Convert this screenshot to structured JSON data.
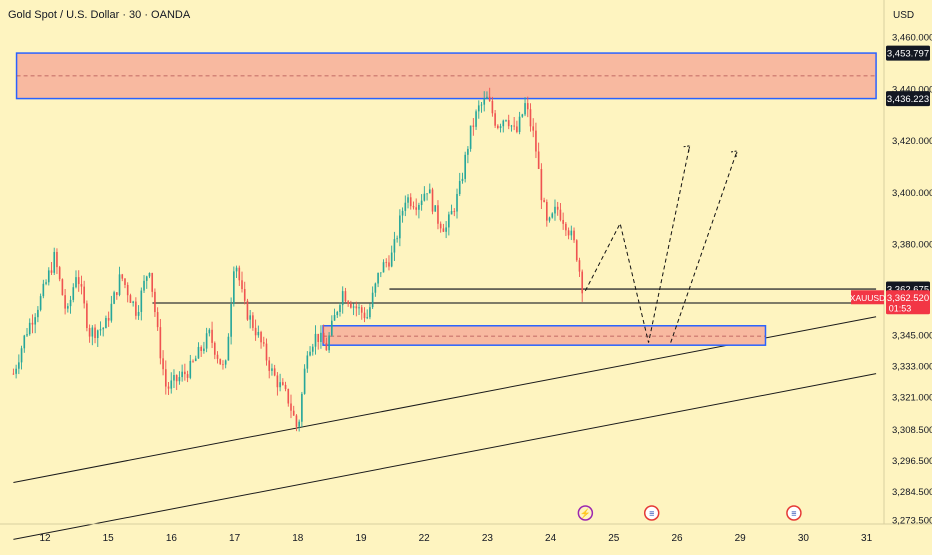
{
  "symbol_title": "Gold Spot / U.S. Dollar · 30 · OANDA",
  "currency": "USD",
  "ticker": "XAUUSD",
  "last_price": "3,362.520",
  "countdown": "01:53",
  "colors": {
    "background": "#fef4c0",
    "bull": "#26a69a",
    "bear": "#ef5350",
    "zone_fill": "#f8b9a0",
    "zone_border": "#2962ff",
    "line": "#1a1a1a",
    "price_tag": "#f23645"
  },
  "chart_data": {
    "type": "candlestick",
    "ylim": [
      3267,
      3465
    ],
    "y_ticks": [
      {
        "value": 3460,
        "label": "3,460.000"
      },
      {
        "value": 3440,
        "label": "3,440.000"
      },
      {
        "value": 3420,
        "label": "3,420.000"
      },
      {
        "value": 3400,
        "label": "3,400.000"
      },
      {
        "value": 3380,
        "label": "3,380.000"
      },
      {
        "value": 3345,
        "label": "3,345.000"
      },
      {
        "value": 3333,
        "label": "3,333.000"
      },
      {
        "value": 3321,
        "label": "3,321.000"
      },
      {
        "value": 3308.5,
        "label": "3,308.500"
      },
      {
        "value": 3296.5,
        "label": "3,296.500"
      },
      {
        "value": 3284.5,
        "label": "3,284.500"
      },
      {
        "value": 3273.5,
        "label": "3,273.500"
      }
    ],
    "x_ticks": [
      {
        "label": "12",
        "pos": 0
      },
      {
        "label": "15",
        "pos": 1
      },
      {
        "label": "16",
        "pos": 2
      },
      {
        "label": "17",
        "pos": 3
      },
      {
        "label": "18",
        "pos": 4
      },
      {
        "label": "19",
        "pos": 5
      },
      {
        "label": "22",
        "pos": 6
      },
      {
        "label": "23",
        "pos": 7
      },
      {
        "label": "24",
        "pos": 8
      },
      {
        "label": "25",
        "pos": 9
      },
      {
        "label": "26",
        "pos": 10
      },
      {
        "label": "29",
        "pos": 11
      },
      {
        "label": "30",
        "pos": 12
      },
      {
        "label": "31",
        "pos": 13
      }
    ],
    "xlim": [
      -0.5,
      13.15
    ],
    "price_labels": [
      {
        "value": 3453.797,
        "label": "3,453.797"
      },
      {
        "value": 3436.223,
        "label": "3,436.223"
      },
      {
        "value": 3362.675,
        "label": "3,362.675"
      },
      {
        "value": 3357.295,
        "label": "3,357.295"
      }
    ],
    "zones": [
      {
        "x0": -0.45,
        "x1": 13.15,
        "top": 3453.797,
        "bottom": 3436.223,
        "mid": 3445.0
      },
      {
        "x0": 4.4,
        "x1": 11.4,
        "top": 3348.5,
        "bottom": 3341.0,
        "mid": 3344.5
      }
    ],
    "h_lines": [
      {
        "value": 3362.675,
        "x0": 5.45,
        "x1": 13.15
      },
      {
        "value": 3357.295,
        "x0": 1.7,
        "x1": 13.15
      }
    ],
    "trend_lines": [
      {
        "x0": -0.5,
        "y0": 3288,
        "x1": 13.15,
        "y1": 3352
      },
      {
        "x0": -0.5,
        "y0": 3266,
        "x1": 13.15,
        "y1": 3330
      }
    ],
    "projection_path": [
      {
        "x": 8.55,
        "y": 3362
      },
      {
        "x": 9.1,
        "y": 3388
      },
      {
        "x": 9.55,
        "y": 3342
      },
      {
        "x": 10.2,
        "y": 3418
      }
    ],
    "projection_path_2": [
      {
        "x": 9.9,
        "y": 3342
      },
      {
        "x": 10.95,
        "y": 3416
      }
    ],
    "event_icons": [
      {
        "name": "lightning",
        "pos": 8.55,
        "symbol": "⚡"
      },
      {
        "name": "us-flag",
        "pos": 9.6,
        "symbol": "≡"
      },
      {
        "name": "us-flag",
        "pos": 11.85,
        "symbol": "≡"
      }
    ],
    "price_anchors": [
      {
        "x": -0.5,
        "y": 3330
      },
      {
        "x": -0.3,
        "y": 3346
      },
      {
        "x": -0.05,
        "y": 3360
      },
      {
        "x": 0.15,
        "y": 3375
      },
      {
        "x": 0.35,
        "y": 3352
      },
      {
        "x": 0.5,
        "y": 3370
      },
      {
        "x": 0.7,
        "y": 3346
      },
      {
        "x": 0.95,
        "y": 3348
      },
      {
        "x": 1.2,
        "y": 3368
      },
      {
        "x": 1.45,
        "y": 3354
      },
      {
        "x": 1.65,
        "y": 3372
      },
      {
        "x": 1.8,
        "y": 3342
      },
      {
        "x": 1.92,
        "y": 3324
      },
      {
        "x": 2.3,
        "y": 3332
      },
      {
        "x": 2.6,
        "y": 3345
      },
      {
        "x": 2.85,
        "y": 3330
      },
      {
        "x": 3.0,
        "y": 3376
      },
      {
        "x": 3.15,
        "y": 3356
      },
      {
        "x": 3.35,
        "y": 3346
      },
      {
        "x": 3.6,
        "y": 3330
      },
      {
        "x": 3.85,
        "y": 3320
      },
      {
        "x": 4.0,
        "y": 3308
      },
      {
        "x": 4.15,
        "y": 3340
      },
      {
        "x": 4.3,
        "y": 3345
      },
      {
        "x": 4.45,
        "y": 3340
      },
      {
        "x": 4.7,
        "y": 3362
      },
      {
        "x": 4.9,
        "y": 3356
      },
      {
        "x": 5.1,
        "y": 3352
      },
      {
        "x": 5.3,
        "y": 3370
      },
      {
        "x": 5.5,
        "y": 3376
      },
      {
        "x": 5.7,
        "y": 3398
      },
      {
        "x": 5.9,
        "y": 3396
      },
      {
        "x": 6.05,
        "y": 3402
      },
      {
        "x": 6.2,
        "y": 3390
      },
      {
        "x": 6.35,
        "y": 3386
      },
      {
        "x": 6.55,
        "y": 3400
      },
      {
        "x": 6.72,
        "y": 3422
      },
      {
        "x": 6.85,
        "y": 3432
      },
      {
        "x": 7.0,
        "y": 3436
      },
      {
        "x": 7.15,
        "y": 3426
      },
      {
        "x": 7.3,
        "y": 3430
      },
      {
        "x": 7.45,
        "y": 3422
      },
      {
        "x": 7.6,
        "y": 3434
      },
      {
        "x": 7.75,
        "y": 3420
      },
      {
        "x": 7.85,
        "y": 3400
      },
      {
        "x": 7.95,
        "y": 3386
      },
      {
        "x": 8.1,
        "y": 3394
      },
      {
        "x": 8.25,
        "y": 3388
      },
      {
        "x": 8.4,
        "y": 3378
      },
      {
        "x": 8.5,
        "y": 3364
      }
    ],
    "candle_count": 210
  }
}
